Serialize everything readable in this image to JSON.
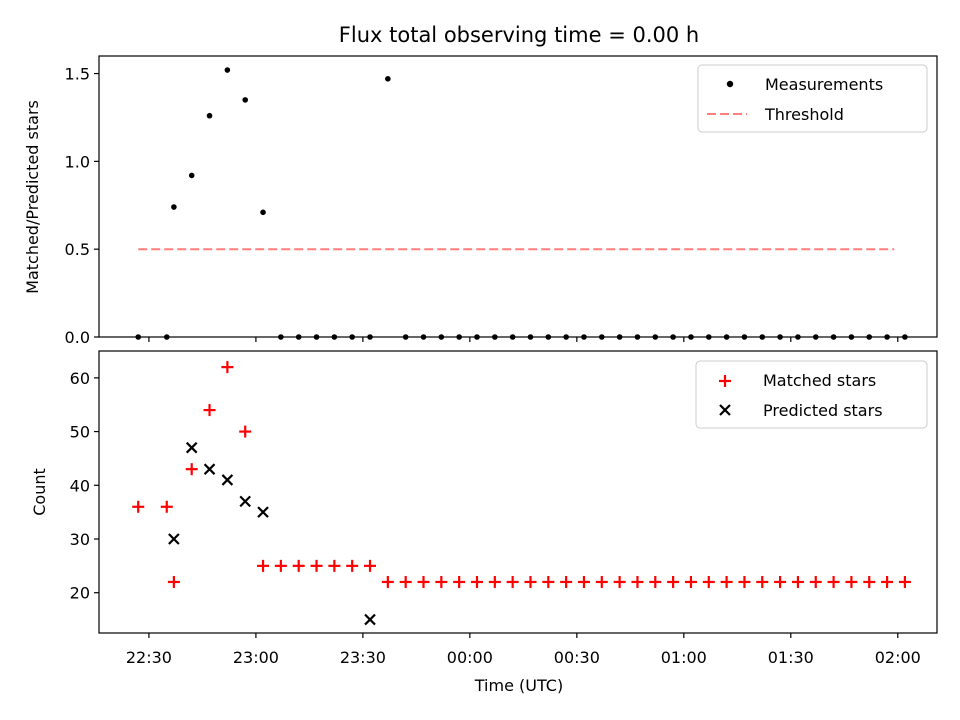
{
  "chart_data": [
    {
      "type": "scatter",
      "title": "Flux total observing time = 0.00 h",
      "ylabel": "Matched/Predicted stars",
      "xlabel": "",
      "ylim": [
        0,
        1.6
      ],
      "xlim_minutes": [
        -44,
        191
      ],
      "yticks": [
        0.0,
        0.5,
        1.0,
        1.5
      ],
      "ytick_labels": [
        "0.0",
        "0.5",
        "1.0",
        "1.5"
      ],
      "xticks": [
        -30,
        0,
        30,
        60,
        90,
        120,
        150,
        180
      ],
      "legend_position": "top-right",
      "grid": false,
      "threshold_value": 0.5,
      "threshold_range_minutes": [
        -33,
        179
      ],
      "series": [
        {
          "name": "Measurements",
          "marker": "dot",
          "color": "#000000",
          "x": [
            -33,
            -25,
            -23,
            -18,
            -13,
            -8,
            -3,
            2,
            7,
            12,
            17,
            22,
            27,
            32,
            37,
            42,
            47,
            52,
            57,
            62,
            67,
            72,
            77,
            82,
            87,
            92,
            97,
            102,
            107,
            112,
            117,
            122,
            127,
            132,
            137,
            142,
            147,
            152,
            157,
            162,
            167,
            172,
            177,
            182
          ],
          "y": [
            0,
            0,
            0.74,
            0.92,
            1.26,
            1.52,
            1.35,
            0.71,
            0,
            0,
            0,
            0,
            0,
            0,
            1.47,
            0,
            0,
            0,
            0,
            0,
            0,
            0,
            0,
            0,
            0,
            0,
            0,
            0,
            0,
            0,
            0,
            0,
            0,
            0,
            0,
            0,
            0,
            0,
            0,
            0,
            0,
            0,
            0,
            0
          ]
        },
        {
          "name": "Threshold",
          "marker": "dashed-line",
          "color": "#ff7f7f"
        }
      ]
    },
    {
      "type": "scatter",
      "title": "",
      "ylabel": "Count",
      "xlabel": "Time (UTC)",
      "ylim": [
        12.5,
        65
      ],
      "xlim_minutes": [
        -44,
        191
      ],
      "yticks": [
        20,
        30,
        40,
        50,
        60
      ],
      "ytick_labels": [
        "20",
        "30",
        "40",
        "50",
        "60"
      ],
      "xticks": [
        -30,
        0,
        30,
        60,
        90,
        120,
        150,
        180
      ],
      "xtick_labels": [
        "22:30",
        "23:00",
        "23:30",
        "00:00",
        "00:30",
        "01:00",
        "01:30",
        "02:00"
      ],
      "legend_position": "top-right",
      "grid": false,
      "series": [
        {
          "name": "Matched stars",
          "marker": "plus",
          "color": "#ff0000",
          "x": [
            -33,
            -25,
            -23,
            -18,
            -13,
            -8,
            -3,
            2,
            7,
            12,
            17,
            22,
            27,
            32,
            37,
            42,
            47,
            52,
            57,
            62,
            67,
            72,
            77,
            82,
            87,
            92,
            97,
            102,
            107,
            112,
            117,
            122,
            127,
            132,
            137,
            142,
            147,
            152,
            157,
            162,
            167,
            172,
            177,
            182
          ],
          "y": [
            36,
            36,
            22,
            43,
            54,
            62,
            50,
            25,
            25,
            25,
            25,
            25,
            25,
            25,
            22,
            22,
            22,
            22,
            22,
            22,
            22,
            22,
            22,
            22,
            22,
            22,
            22,
            22,
            22,
            22,
            22,
            22,
            22,
            22,
            22,
            22,
            22,
            22,
            22,
            22,
            22,
            22,
            22,
            22
          ]
        },
        {
          "name": "Predicted stars",
          "marker": "x",
          "color": "#000000",
          "x": [
            -23,
            -18,
            -13,
            -8,
            -3,
            2,
            32
          ],
          "y": [
            30,
            47,
            43,
            41,
            37,
            35,
            15
          ]
        }
      ]
    }
  ]
}
